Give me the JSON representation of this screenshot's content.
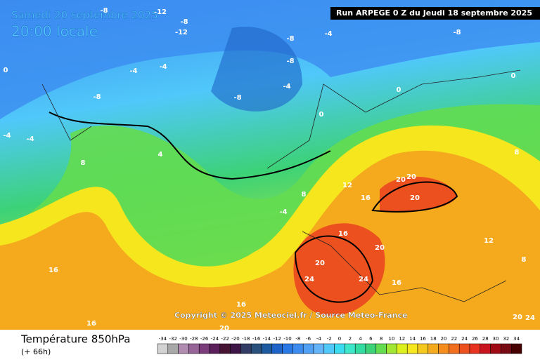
{
  "header": {
    "date": "Samedi 20 septembre 2025",
    "time": "20:00 locale",
    "run": "Run ARPEGE 0 Z du Jeudi 18 septembre 2025"
  },
  "map": {
    "copyright": "Copyright © 2025 Meteociel.fr / Source Meteo-France",
    "isotherm_labels": [
      -8,
      -12,
      -8,
      -12,
      -8,
      -8,
      -4,
      -8,
      -4,
      -8,
      -8,
      -4,
      0,
      0,
      0,
      8,
      4,
      -4,
      8,
      12,
      20,
      20,
      20,
      16,
      16,
      20,
      20,
      24,
      24,
      16,
      16,
      16,
      16,
      20,
      12,
      20,
      24,
      8,
      8,
      -4,
      -4,
      0,
      -4
    ]
  },
  "footer": {
    "title": "Température 850hPa",
    "lead": "(+ 66h)"
  },
  "legend": {
    "ticks": [
      -34,
      -32,
      -30,
      -28,
      -26,
      -24,
      -22,
      -20,
      -18,
      -16,
      -14,
      -12,
      -10,
      -8,
      -6,
      -4,
      -2,
      0,
      2,
      4,
      6,
      8,
      10,
      12,
      14,
      16,
      18,
      20,
      22,
      24,
      26,
      28,
      30,
      32,
      34
    ],
    "colors": [
      "#d2d2d2",
      "#a8a8a8",
      "#b08cb0",
      "#966496",
      "#7a3c7a",
      "#5a1e5a",
      "#461432",
      "#3c1446",
      "#323c64",
      "#28507a",
      "#1e5aa0",
      "#1e64c8",
      "#2878e6",
      "#3c8cf0",
      "#50a0f5",
      "#64b4fa",
      "#50c8fa",
      "#3cdcf0",
      "#3ce6c8",
      "#32dca0",
      "#3cd278",
      "#64dc50",
      "#a0e632",
      "#dcf01e",
      "#f5e61e",
      "#f5c81e",
      "#f5aa1e",
      "#f58c1e",
      "#f06e1e",
      "#eb501e",
      "#e6321e",
      "#c8141e",
      "#a00a14",
      "#780a14",
      "#460000"
    ]
  }
}
